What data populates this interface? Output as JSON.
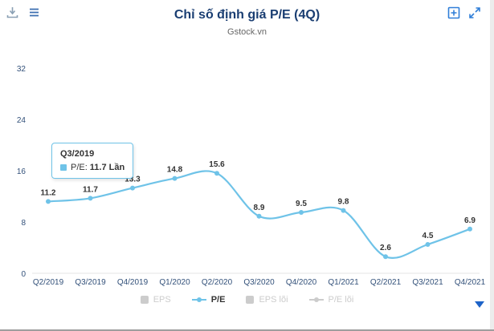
{
  "header": {
    "title": "Chỉ số định giá P/E (4Q)",
    "subtitle": "Gstock.vn"
  },
  "chart_data": {
    "type": "line",
    "title": "Chỉ số định giá P/E (4Q)",
    "subtitle": "Gstock.vn",
    "categories": [
      "Q2/2019",
      "Q3/2019",
      "Q4/2019",
      "Q1/2020",
      "Q2/2020",
      "Q3/2020",
      "Q4/2020",
      "Q1/2021",
      "Q2/2021",
      "Q3/2021",
      "Q4/2021"
    ],
    "series": [
      {
        "name": "P/E",
        "values": [
          11.2,
          11.7,
          13.3,
          14.8,
          15.6,
          8.9,
          9.5,
          9.8,
          2.6,
          4.5,
          6.9
        ],
        "color": "#6fc3e8"
      }
    ],
    "xlabel": "",
    "ylabel": "",
    "ylim": [
      0,
      32
    ],
    "yticks": [
      0,
      8,
      16,
      24,
      32
    ],
    "grid": false,
    "legend_position": "bottom",
    "unit": "Lần"
  },
  "tooltip": {
    "title": "Q3/2019",
    "series_label": "P/E:",
    "value_text": "11.7 Lần"
  },
  "legend": [
    {
      "label": "EPS",
      "marker": "square",
      "enabled": false
    },
    {
      "label": "P/E",
      "marker": "line",
      "enabled": true
    },
    {
      "label": "EPS lõi",
      "marker": "square",
      "enabled": false
    },
    {
      "label": "P/E lõi",
      "marker": "line",
      "enabled": false
    }
  ],
  "colors": {
    "accent": "#6fc3e8",
    "title": "#1a3e72",
    "axis_label": "#33517a",
    "data_label": "#333333",
    "disabled": "#cccccc",
    "icon_blue": "#2f7ed8",
    "icon_gray": "#8aa0b4",
    "dropdown": "#1d63c8"
  }
}
